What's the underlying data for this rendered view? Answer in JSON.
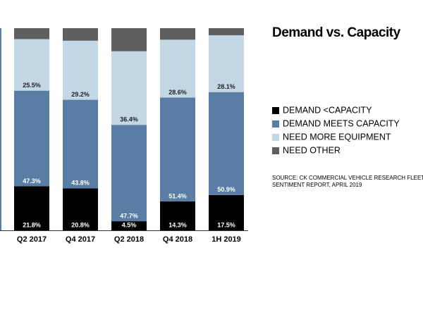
{
  "chart_data": {
    "type": "stacked-bar",
    "title": "Demand vs. Capacity",
    "categories": [
      "Q2 2017",
      "Q4 2017",
      "Q2 2018",
      "Q4 2018",
      "1H 2019"
    ],
    "series": [
      {
        "name": "DEMAND <CAPACITY",
        "color": "#000000",
        "values": [
          21.8,
          20.8,
          4.5,
          14.3,
          17.5
        ],
        "value_labels": [
          "21.8%",
          "20.8%",
          "4.5%",
          "14.3%",
          "17.5%"
        ]
      },
      {
        "name": "DEMAND MEETS CAPACITY",
        "color": "#5a7da6",
        "values": [
          47.3,
          43.8,
          47.7,
          51.4,
          50.9
        ],
        "value_labels": [
          "47.3%",
          "43.8%",
          "47.7%",
          "51.4%",
          "50.9%"
        ]
      },
      {
        "name": "NEED MORE EQUIPMENT",
        "color": "#c3d7e4",
        "values": [
          25.5,
          29.2,
          36.4,
          28.6,
          28.1
        ],
        "value_labels": [
          "25.5%",
          "29.2%",
          "36.4%",
          "28.6%",
          "28.1%"
        ]
      },
      {
        "name": "NEED OTHER",
        "color": "#5f5f5f",
        "values": [
          5.4,
          6.2,
          11.4,
          5.7,
          3.5
        ]
      }
    ],
    "source": [
      "SOURCE: CK COMMERCIAL VEHICLE RESEARCH FLEET",
      "SENTIMENT REPORT, APRIL 2019"
    ]
  }
}
